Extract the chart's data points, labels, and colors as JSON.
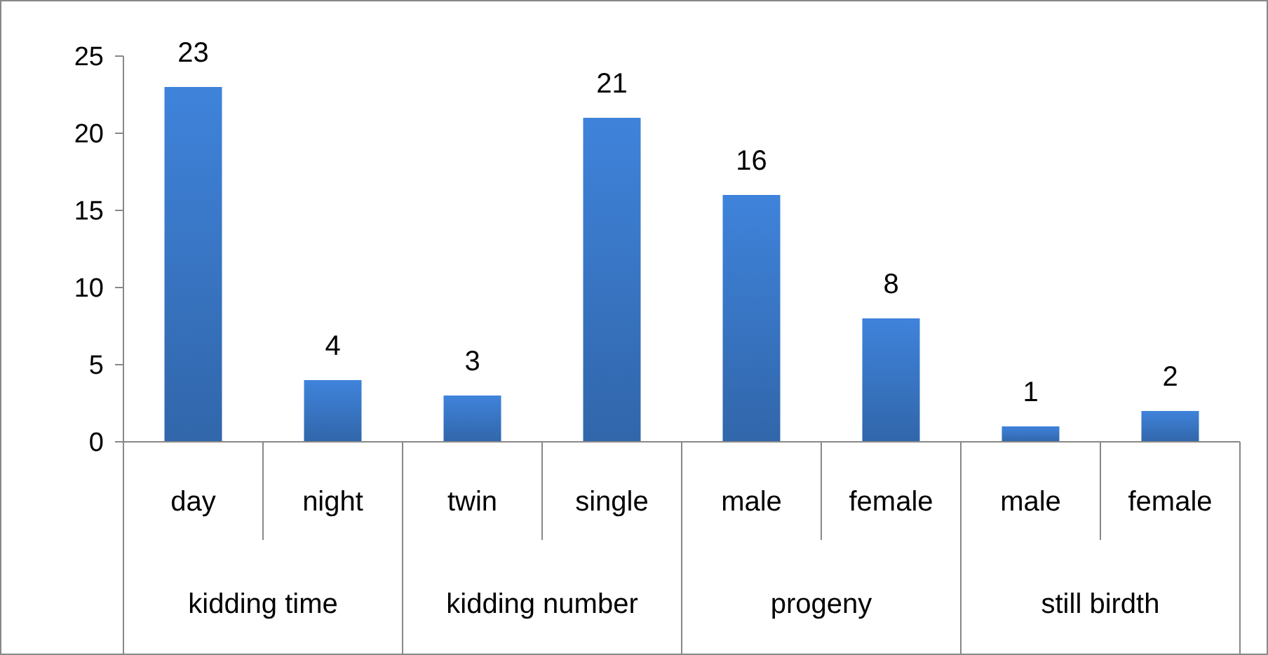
{
  "chart_data": {
    "type": "bar",
    "categories": [
      "day",
      "night",
      "twin",
      "single",
      "male",
      "female",
      "male",
      "female"
    ],
    "values": [
      23,
      4,
      3,
      21,
      16,
      8,
      1,
      2
    ],
    "color": "#3a78c8",
    "ylim": [
      0,
      25
    ],
    "yticks": [
      0,
      5,
      10,
      15,
      20,
      25
    ],
    "data_labels": true,
    "annotations": [
      "kidding time",
      "kidding number",
      "progeny",
      "still birdth"
    ]
  }
}
